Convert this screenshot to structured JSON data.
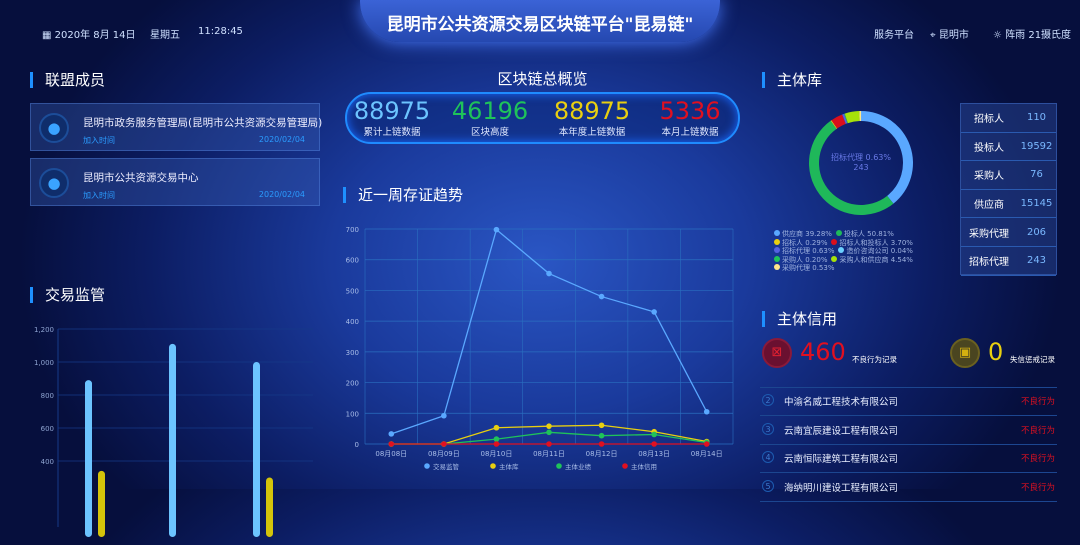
{
  "header": {
    "title": "昆明市公共资源交易区块链平台\"昆易链\"",
    "date": "2020年 8月 14日",
    "weekday": "星期五",
    "time": "11:28:45",
    "platform": "服务平台",
    "city": "昆明市",
    "weather": "阵雨 21摄氏度"
  },
  "members": {
    "title": "联盟成员",
    "items": [
      {
        "name": "昆明市政务服务管理局(昆明市公共资源交易管理局)",
        "join_label": "加入时间",
        "date": "2020/02/04"
      },
      {
        "name": "昆明市公共资源交易中心",
        "join_label": "加入时间",
        "date": "2020/02/04"
      }
    ]
  },
  "overview": {
    "title": "区块链总概览",
    "stats": [
      {
        "value": "88975",
        "label": "累计上链数据",
        "color": "#6cc4ff"
      },
      {
        "value": "46196",
        "label": "区块高度",
        "color": "#1fc35a"
      },
      {
        "value": "88975",
        "label": "本年度上链数据",
        "color": "#e8cf10"
      },
      {
        "value": "5336",
        "label": "本月上链数据",
        "color": "#e01020"
      }
    ]
  },
  "trend_title": "近一周存证趋势",
  "trade_title": "交易监管",
  "entity": {
    "title": "主体库",
    "center_label": "招标代理 0.63%",
    "center_value": "243",
    "table": [
      {
        "k": "招标人",
        "v": "110"
      },
      {
        "k": "投标人",
        "v": "19592"
      },
      {
        "k": "采购人",
        "v": "76"
      },
      {
        "k": "供应商",
        "v": "15145"
      },
      {
        "k": "采购代理",
        "v": "206"
      },
      {
        "k": "招标代理",
        "v": "243"
      }
    ]
  },
  "credit": {
    "title": "主体信用",
    "bad_count": "460",
    "bad_label": "不良行为记录",
    "dishonest_count": "0",
    "dishonest_label": "失信惩戒记录",
    "rows": [
      {
        "n": "2",
        "company": "中渝名威工程技术有限公司",
        "tag": "不良行为"
      },
      {
        "n": "3",
        "company": "云南宜辰建设工程有限公司",
        "tag": "不良行为"
      },
      {
        "n": "4",
        "company": "云南恒际建筑工程有限公司",
        "tag": "不良行为"
      },
      {
        "n": "5",
        "company": "海纳明川建设工程有限公司",
        "tag": "不良行为"
      }
    ]
  },
  "chart_data": [
    {
      "type": "line",
      "categories": [
        "08月08日",
        "08月09日",
        "08月10日",
        "08月11日",
        "08月12日",
        "08月13日",
        "08月14日"
      ],
      "ylim": [
        0,
        700
      ],
      "yticks": [
        0,
        100,
        200,
        300,
        400,
        500,
        600,
        700
      ],
      "grid": true,
      "legend": "bottom",
      "series": [
        {
          "name": "交易监管",
          "color": "#5aa8ff",
          "values": [
            33,
            92,
            698,
            555,
            480,
            430,
            105
          ]
        },
        {
          "name": "主体库",
          "color": "#e8cf10",
          "values": [
            0,
            0,
            53,
            58,
            61,
            40,
            8
          ]
        },
        {
          "name": "主体业绩",
          "color": "#1fc35a",
          "values": [
            0,
            0,
            16,
            38,
            27,
            31,
            5
          ]
        },
        {
          "name": "主体信用",
          "color": "#e01020",
          "values": [
            0,
            0,
            0,
            0,
            0,
            0,
            0
          ]
        }
      ]
    },
    {
      "type": "bar",
      "ylim": [
        0,
        1200
      ],
      "yticks": [
        400,
        600,
        800,
        1000,
        1200
      ],
      "ytick_labels": [
        "400",
        "600",
        "800",
        "1,000",
        "1,200"
      ],
      "grid": true,
      "series": [
        {
          "color": "#6cc4ff",
          "values": [
            890,
            1110,
            1000
          ]
        },
        {
          "color": "#d4c40a",
          "values": [
            340,
            null,
            300
          ]
        }
      ]
    },
    {
      "type": "pie",
      "donut": true,
      "slices": [
        {
          "name": "供应商",
          "pct": 39.28,
          "color": "#5aa8ff"
        },
        {
          "name": "投标人",
          "pct": 50.81,
          "color": "#1fb85a"
        },
        {
          "name": "招标人",
          "pct": 0.29,
          "color": "#e8cf10"
        },
        {
          "name": "招标人和投标人",
          "pct": 3.7,
          "color": "#d90f1c"
        },
        {
          "name": "招标代理",
          "pct": 0.63,
          "color": "#5560e0"
        },
        {
          "name": "造价咨询公司",
          "pct": 0.04,
          "color": "#6cd0ff"
        },
        {
          "name": "采购人",
          "pct": 0.2,
          "color": "#1fc35a"
        },
        {
          "name": "采购人和供应商",
          "pct": 4.54,
          "color": "#a6e20a"
        },
        {
          "name": "采购代理",
          "pct": 0.53,
          "color": "#ffe58a"
        }
      ]
    }
  ]
}
